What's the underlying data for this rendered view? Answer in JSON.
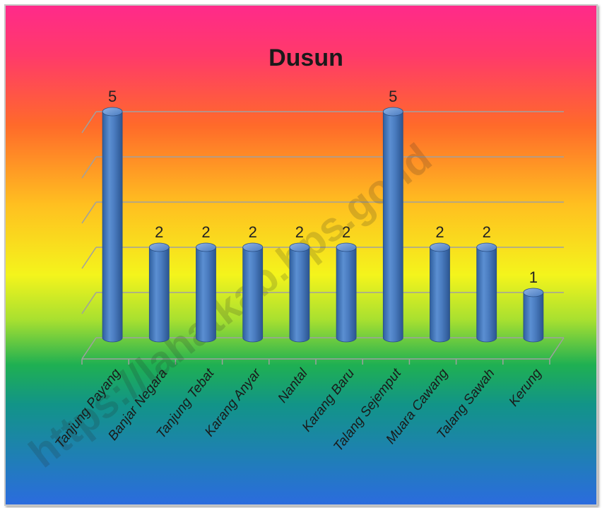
{
  "chart_data": {
    "type": "bar",
    "title": "Dusun",
    "categories": [
      "Tanjung Payang",
      "Banjar Negara",
      "Tanjung Tebat",
      "Karang Anyar",
      "Nantal",
      "Karang Baru",
      "Talang Sejemput",
      "Muara Cawang",
      "Talang Sawah",
      "Kerung"
    ],
    "values": [
      5,
      2,
      2,
      2,
      2,
      2,
      5,
      2,
      2,
      1
    ],
    "ylim": [
      0,
      5
    ],
    "grid": true,
    "legend": "none",
    "bar_shape": "cylinder",
    "bar_color": "#4f81bd",
    "background": "rainbow-gradient",
    "watermark": "https://lahatkab.bps.go.id"
  }
}
